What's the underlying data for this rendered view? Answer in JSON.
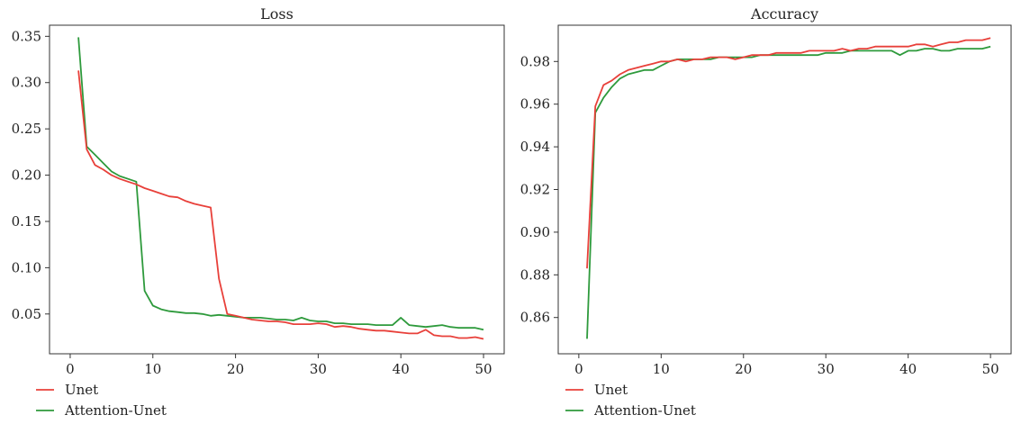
{
  "chart_data": [
    {
      "type": "line",
      "title": "Loss",
      "xlabel": "",
      "ylabel": "",
      "xlim": [
        -2.5,
        52.5
      ],
      "ylim": [
        0.007,
        0.362
      ],
      "xticks": [
        0,
        10,
        20,
        30,
        40,
        50
      ],
      "xtick_labels": [
        "0",
        "10",
        "20",
        "30",
        "40",
        "50"
      ],
      "yticks": [
        0.05,
        0.1,
        0.15,
        0.2,
        0.25,
        0.3,
        0.35
      ],
      "ytick_labels": [
        "0.05",
        "0.10",
        "0.15",
        "0.20",
        "0.25",
        "0.30",
        "0.35"
      ],
      "grid": false,
      "legend_position": "below-left",
      "x": [
        1,
        2,
        3,
        4,
        5,
        6,
        7,
        8,
        9,
        10,
        11,
        12,
        13,
        14,
        15,
        16,
        17,
        18,
        19,
        20,
        21,
        22,
        23,
        24,
        25,
        26,
        27,
        28,
        29,
        30,
        31,
        32,
        33,
        34,
        35,
        36,
        37,
        38,
        39,
        40,
        41,
        42,
        43,
        44,
        45,
        46,
        47,
        48,
        49,
        50
      ],
      "series": [
        {
          "name": "Unet",
          "color": "#e8403a",
          "values": [
            0.313,
            0.228,
            0.211,
            0.206,
            0.2,
            0.196,
            0.193,
            0.19,
            0.186,
            0.183,
            0.18,
            0.177,
            0.176,
            0.172,
            0.169,
            0.167,
            0.165,
            0.088,
            0.05,
            0.048,
            0.046,
            0.044,
            0.043,
            0.042,
            0.042,
            0.041,
            0.039,
            0.039,
            0.039,
            0.04,
            0.039,
            0.036,
            0.037,
            0.036,
            0.034,
            0.033,
            0.032,
            0.032,
            0.031,
            0.03,
            0.029,
            0.029,
            0.033,
            0.027,
            0.026,
            0.026,
            0.024,
            0.024,
            0.025,
            0.023
          ]
        },
        {
          "name": "Attention-Unet",
          "color": "#2e9a3c",
          "values": [
            0.349,
            0.231,
            0.222,
            0.213,
            0.204,
            0.199,
            0.196,
            0.193,
            0.075,
            0.059,
            0.055,
            0.053,
            0.052,
            0.051,
            0.051,
            0.05,
            0.048,
            0.049,
            0.048,
            0.047,
            0.046,
            0.046,
            0.046,
            0.045,
            0.044,
            0.044,
            0.043,
            0.046,
            0.043,
            0.042,
            0.042,
            0.04,
            0.04,
            0.039,
            0.039,
            0.039,
            0.038,
            0.038,
            0.038,
            0.046,
            0.038,
            0.037,
            0.036,
            0.037,
            0.038,
            0.036,
            0.035,
            0.035,
            0.035,
            0.033
          ]
        }
      ]
    },
    {
      "type": "line",
      "title": "Accuracy",
      "xlabel": "",
      "ylabel": "",
      "xlim": [
        -2.5,
        52.5
      ],
      "ylim": [
        0.843,
        0.997
      ],
      "xticks": [
        0,
        10,
        20,
        30,
        40,
        50
      ],
      "xtick_labels": [
        "0",
        "10",
        "20",
        "30",
        "40",
        "50"
      ],
      "yticks": [
        0.86,
        0.88,
        0.9,
        0.92,
        0.94,
        0.96,
        0.98
      ],
      "ytick_labels": [
        "0.86",
        "0.88",
        "0.90",
        "0.92",
        "0.94",
        "0.96",
        "0.98"
      ],
      "grid": false,
      "legend_position": "below-left",
      "x": [
        1,
        2,
        3,
        4,
        5,
        6,
        7,
        8,
        9,
        10,
        11,
        12,
        13,
        14,
        15,
        16,
        17,
        18,
        19,
        20,
        21,
        22,
        23,
        24,
        25,
        26,
        27,
        28,
        29,
        30,
        31,
        32,
        33,
        34,
        35,
        36,
        37,
        38,
        39,
        40,
        41,
        42,
        43,
        44,
        45,
        46,
        47,
        48,
        49,
        50
      ],
      "series": [
        {
          "name": "Unet",
          "color": "#e8403a",
          "values": [
            0.883,
            0.959,
            0.969,
            0.971,
            0.974,
            0.976,
            0.977,
            0.978,
            0.979,
            0.98,
            0.98,
            0.981,
            0.98,
            0.981,
            0.981,
            0.982,
            0.982,
            0.982,
            0.981,
            0.982,
            0.983,
            0.983,
            0.983,
            0.984,
            0.984,
            0.984,
            0.984,
            0.985,
            0.985,
            0.985,
            0.985,
            0.986,
            0.985,
            0.986,
            0.986,
            0.987,
            0.987,
            0.987,
            0.987,
            0.987,
            0.988,
            0.988,
            0.987,
            0.988,
            0.989,
            0.989,
            0.99,
            0.99,
            0.99,
            0.991
          ]
        },
        {
          "name": "Attention-Unet",
          "color": "#2e9a3c",
          "values": [
            0.85,
            0.956,
            0.963,
            0.968,
            0.972,
            0.974,
            0.975,
            0.976,
            0.976,
            0.978,
            0.98,
            0.981,
            0.981,
            0.981,
            0.981,
            0.981,
            0.982,
            0.982,
            0.982,
            0.982,
            0.982,
            0.983,
            0.983,
            0.983,
            0.983,
            0.983,
            0.983,
            0.983,
            0.983,
            0.984,
            0.984,
            0.984,
            0.985,
            0.985,
            0.985,
            0.985,
            0.985,
            0.985,
            0.983,
            0.985,
            0.985,
            0.986,
            0.986,
            0.985,
            0.985,
            0.986,
            0.986,
            0.986,
            0.986,
            0.987
          ]
        }
      ]
    }
  ]
}
